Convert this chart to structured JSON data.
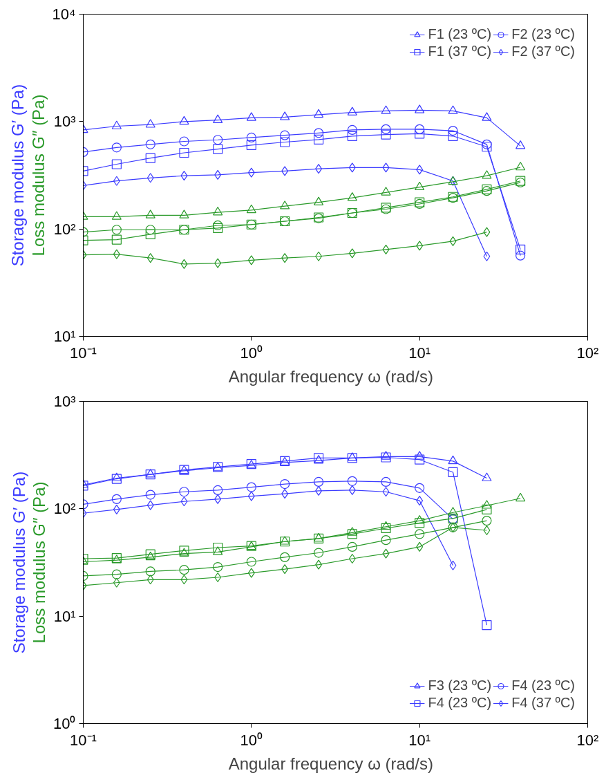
{
  "chart_data": [
    {
      "type": "line",
      "xlabel": "Angular frequency  ω  (rad/s)",
      "ylabel": "Storage modulus G′ (Pa)",
      "y2label": "Loss modulus G″ (Pa)",
      "log": "xy",
      "grid": false,
      "legend": "top right",
      "x": [
        0.1,
        0.158,
        0.251,
        0.398,
        0.631,
        1,
        1.58,
        2.51,
        3.98,
        6.31,
        10,
        15.8,
        25.1,
        39.8
      ],
      "xlim": [
        0.1,
        100
      ],
      "xticks": [
        {
          "value": 0.1,
          "label": "10⁻¹"
        },
        {
          "value": 1,
          "label": "10⁰"
        },
        {
          "value": 10,
          "label": "10¹"
        },
        {
          "value": 100,
          "label": "10²"
        }
      ],
      "ylim": [
        10,
        10000
      ],
      "yticks": [
        {
          "value": 10,
          "label": "10¹"
        },
        {
          "value": 100,
          "label": "10²"
        },
        {
          "value": 1000,
          "label": "10³"
        },
        {
          "value": 10000,
          "label": "10⁴"
        }
      ],
      "series": [
        {
          "name": "F1 (23 ºC)",
          "marker": "triangle",
          "color": "#3c3cff",
          "values": [
            836,
            906,
            937,
            1000,
            1033,
            1084,
            1100,
            1159,
            1216,
            1256,
            1277,
            1256,
            1084,
            593
          ]
        },
        {
          "name": "F2 (23 ºC)",
          "marker": "circle",
          "color": "#3c3cff",
          "values": [
            520,
            574,
            613,
            654,
            676,
            710,
            745,
            783,
            836,
            849,
            849,
            822,
            613,
            56.5
          ]
        },
        {
          "name": "F1 (37 ºC)",
          "marker": "square",
          "color": "#3c3cff",
          "values": [
            346,
            401,
            457,
            512,
            555,
            603,
            644,
            680,
            733,
            757,
            770,
            733,
            583,
            64.4
          ]
        },
        {
          "name": "F2 (37 ºC)",
          "marker": "diamond",
          "color": "#3c3cff",
          "values": [
            254,
            280,
            299,
            313,
            319,
            335,
            346,
            363,
            373,
            373,
            357,
            280,
            55.6,
            null
          ]
        },
        {
          "marker": "triangle",
          "color": "#2a9a2a",
          "values": [
            130,
            130,
            134,
            134,
            143,
            150,
            163,
            177,
            195,
            219,
            245,
            275,
            313,
            375
          ]
        },
        {
          "marker": "circle",
          "color": "#2a9a2a",
          "values": [
            93.7,
            98.4,
            98.4,
            98.4,
            108,
            110,
            118,
            126,
            141,
            153,
            171,
            195,
            226,
            271
          ]
        },
        {
          "marker": "square",
          "color": "#2a9a2a",
          "values": [
            78.3,
            79.6,
            89.2,
            98.4,
            102,
            110,
            118,
            128,
            141,
            158,
            177,
            199,
            234,
            280
          ]
        },
        {
          "marker": "diamond",
          "color": "#2a9a2a",
          "values": [
            57.4,
            58.3,
            53.7,
            47.2,
            48.0,
            51.2,
            53.7,
            55.6,
            59.3,
            64.4,
            69.8,
            77.0,
            93.7,
            null
          ]
        }
      ]
    },
    {
      "type": "line",
      "xlabel": "Angular frequency  ω  (rad/s)",
      "ylabel": "Storage modulus G′ (Pa)",
      "y2label": "Loss modulus G″ (Pa)",
      "log": "xy",
      "grid": false,
      "legend": "bottom right",
      "x": [
        0.1,
        0.158,
        0.251,
        0.398,
        0.631,
        1,
        1.58,
        2.51,
        3.98,
        6.31,
        10,
        15.8,
        25.1,
        39.8
      ],
      "xlim": [
        0.1,
        100
      ],
      "xticks": [
        {
          "value": 0.1,
          "label": "10⁻¹"
        },
        {
          "value": 1,
          "label": "10⁰"
        },
        {
          "value": 10,
          "label": "10¹"
        },
        {
          "value": 100,
          "label": "10²"
        }
      ],
      "ylim": [
        1,
        1000
      ],
      "yticks": [
        {
          "value": 1,
          "label": "10⁰"
        },
        {
          "value": 10,
          "label": "10¹"
        },
        {
          "value": 100,
          "label": "10²"
        },
        {
          "value": 1000,
          "label": "10³"
        }
      ],
      "series": [
        {
          "name": "F3 (23 ºC)",
          "marker": "triangle",
          "color": "#3c3cff",
          "values": [
            167,
            193,
            209,
            226,
            241,
            253,
            270,
            281,
            297,
            306,
            306,
            278,
            193,
            null
          ]
        },
        {
          "name": "F4 (23 ºC)",
          "marker": "circle",
          "color": "#3c3cff",
          "values": [
            110,
            123,
            135,
            144,
            149,
            159,
            170,
            178,
            181,
            178,
            156,
            80.0,
            null,
            null
          ]
        },
        {
          "name": "F4 (23 ºC)",
          "marker": "square",
          "color": "#3c3cff",
          "values": [
            164,
            190,
            209,
            230,
            245,
            261,
            278,
            297,
            297,
            301,
            287,
            219,
            8.26,
            null
          ]
        },
        {
          "name": "F4 (37 ºC)",
          "marker": "diamond",
          "color": "#3c3cff",
          "values": [
            90.9,
            98.4,
            108,
            117,
            123,
            131,
            138,
            147,
            149,
            144,
            119,
            29.7,
            null,
            null
          ]
        },
        {
          "marker": "triangle",
          "color": "#2a9a2a",
          "values": [
            32.1,
            33.2,
            35.4,
            38.3,
            39.6,
            44.2,
            49.5,
            52.8,
            60.0,
            68.1,
            77.4,
            92.3,
            107,
            125
          ]
        },
        {
          "marker": "circle",
          "color": "#2a9a2a",
          "values": [
            23.7,
            24.5,
            26.1,
            27.0,
            28.7,
            32.1,
            35.4,
            38.9,
            44.2,
            51.1,
            58.1,
            67.0,
            77.4,
            null
          ]
        },
        {
          "marker": "square",
          "color": "#2a9a2a",
          "values": [
            34.3,
            34.8,
            37.7,
            40.8,
            43.5,
            45.0,
            49.5,
            52.8,
            58.1,
            65.9,
            73.8,
            81.2,
            98.4,
            null
          ]
        },
        {
          "marker": "diamond",
          "color": "#2a9a2a",
          "values": [
            19.3,
            20.5,
            21.9,
            21.9,
            23.0,
            25.3,
            27.4,
            30.2,
            34.3,
            38.3,
            44.2,
            67.0,
            63.0,
            null
          ]
        }
      ]
    }
  ]
}
